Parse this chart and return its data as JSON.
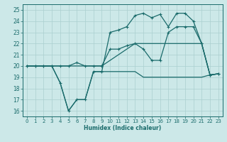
{
  "xlabel": "Humidex (Indice chaleur)",
  "bg_color": "#cce8e8",
  "grid_color": "#aacfcf",
  "line_color": "#1a6b6b",
  "xlim": [
    -0.5,
    23.5
  ],
  "ylim": [
    15.5,
    25.5
  ],
  "yticks": [
    16,
    17,
    18,
    19,
    20,
    21,
    22,
    23,
    24,
    25
  ],
  "xticks": [
    0,
    1,
    2,
    3,
    4,
    5,
    6,
    7,
    8,
    9,
    10,
    11,
    12,
    13,
    14,
    15,
    16,
    17,
    18,
    19,
    20,
    21,
    22,
    23
  ],
  "series": [
    {
      "x": [
        0,
        1,
        2,
        3,
        4,
        5,
        6,
        7,
        8,
        9,
        10,
        11,
        12,
        13,
        14,
        15,
        16,
        17,
        18,
        19,
        20,
        21,
        22,
        23
      ],
      "y": [
        20,
        20,
        20,
        20,
        18.5,
        16,
        17,
        17,
        19.5,
        19.5,
        19.5,
        19.5,
        19.5,
        19.5,
        19,
        19,
        19,
        19,
        19,
        19,
        19,
        19,
        19.2,
        19.3
      ],
      "marker": null,
      "lw": 0.9
    },
    {
      "x": [
        0,
        1,
        2,
        3,
        4,
        5,
        6,
        7,
        8,
        9,
        10,
        11,
        12,
        13,
        14,
        15,
        16,
        17,
        18,
        19,
        20,
        21,
        22,
        23
      ],
      "y": [
        20,
        20,
        20,
        20,
        20,
        20,
        20,
        20,
        20,
        20,
        20.5,
        21,
        21.5,
        22,
        22,
        22,
        22,
        22,
        22,
        22,
        22,
        22,
        19.2,
        19.3
      ],
      "marker": null,
      "lw": 0.9
    },
    {
      "x": [
        0,
        1,
        2,
        3,
        4,
        5,
        6,
        7,
        8,
        9,
        10,
        11,
        12,
        13,
        14,
        15,
        16,
        17,
        18,
        19,
        20,
        21,
        22,
        23
      ],
      "y": [
        20,
        20,
        20,
        20,
        20,
        20,
        20.3,
        20,
        20,
        20,
        21.5,
        21.5,
        21.8,
        22,
        21.5,
        20.5,
        20.5,
        23,
        23.5,
        23.5,
        23.5,
        22,
        19.2,
        19.3
      ],
      "marker": "+",
      "lw": 0.9
    },
    {
      "x": [
        0,
        1,
        2,
        3,
        4,
        5,
        6,
        7,
        8,
        9,
        10,
        11,
        12,
        13,
        14,
        15,
        16,
        17,
        18,
        19,
        20,
        21,
        22,
        23
      ],
      "y": [
        20,
        20,
        20,
        20,
        18.5,
        16,
        17,
        17,
        19.5,
        19.5,
        23,
        23.2,
        23.5,
        24.5,
        24.7,
        24.3,
        24.6,
        23.5,
        24.7,
        24.7,
        24,
        22,
        19.2,
        19.3
      ],
      "marker": "+",
      "lw": 0.9
    }
  ]
}
